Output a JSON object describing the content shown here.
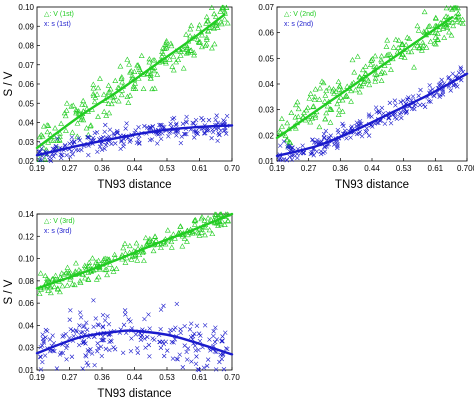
{
  "chart_data": [
    {
      "type": "scatter",
      "xlabel": "TN93 distance",
      "ylabel": "S / V",
      "xticks": [
        "0.19",
        "0.27",
        "0.36",
        "0.44",
        "0.53",
        "0.61",
        "0.70"
      ],
      "yticks": [
        "0.02",
        "0.03",
        "0.04",
        "0.05",
        "0.06",
        "0.07",
        "0.08",
        "0.09",
        "0.10"
      ],
      "xlim": [
        0.19,
        0.7
      ],
      "ylim": [
        0.02,
        0.1
      ],
      "series": [
        {
          "name": "V (1st)",
          "legend_symbol": "△:",
          "marker": "triangle",
          "color": "#22cc22",
          "fit": [
            [
              0.19,
              0.0268
            ],
            [
              0.3,
              0.043
            ],
            [
              0.4,
              0.056
            ],
            [
              0.5,
              0.07
            ],
            [
              0.6,
              0.084
            ],
            [
              0.68,
              0.096
            ]
          ],
          "spread": 0.0055
        },
        {
          "name": "s (1st)",
          "legend_symbol": "x:",
          "marker": "x",
          "color": "#1a1acc",
          "fit": [
            [
              0.19,
              0.023
            ],
            [
              0.3,
              0.028
            ],
            [
              0.4,
              0.032
            ],
            [
              0.5,
              0.0355
            ],
            [
              0.6,
              0.0375
            ],
            [
              0.7,
              0.0385
            ]
          ],
          "spread": 0.003
        }
      ]
    },
    {
      "type": "scatter",
      "xlabel": "TN93 distance",
      "ylabel": "",
      "xticks": [
        "0.19",
        "0.27",
        "0.36",
        "0.44",
        "0.53",
        "0.61",
        "0.700"
      ],
      "yticks": [
        "0.01",
        "0.02",
        "0.03",
        "0.04",
        "0.05",
        "0.06",
        "0.07"
      ],
      "xlim": [
        0.19,
        0.7
      ],
      "ylim": [
        0.01,
        0.07
      ],
      "series": [
        {
          "name": "V (2nd)",
          "legend_symbol": "△:",
          "marker": "triangle",
          "color": "#22cc22",
          "fit": [
            [
              0.19,
              0.019
            ],
            [
              0.3,
              0.03
            ],
            [
              0.4,
              0.04
            ],
            [
              0.5,
              0.05
            ],
            [
              0.6,
              0.06
            ],
            [
              0.66,
              0.066
            ]
          ],
          "spread": 0.004
        },
        {
          "name": "s (2nd)",
          "legend_symbol": "x:",
          "marker": "x",
          "color": "#1a1acc",
          "fit": [
            [
              0.19,
              0.012
            ],
            [
              0.3,
              0.016
            ],
            [
              0.4,
              0.022
            ],
            [
              0.5,
              0.029
            ],
            [
              0.6,
              0.036
            ],
            [
              0.7,
              0.044
            ]
          ],
          "spread": 0.002
        }
      ]
    },
    {
      "type": "scatter",
      "xlabel": "TN93 distance",
      "ylabel": "S / V",
      "xticks": [
        "0.19",
        "0.27",
        "0.36",
        "0.44",
        "0.53",
        "0.61",
        "0.70"
      ],
      "yticks": [
        "0.01",
        "0.03",
        "0.04",
        "0.06",
        "0.08",
        "0.10",
        "0.12",
        "0.14"
      ],
      "xlim": [
        0.19,
        0.7
      ],
      "ylim": [
        0.01,
        0.14
      ],
      "series": [
        {
          "name": "V (3rd)",
          "legend_symbol": "△:",
          "marker": "triangle",
          "color": "#22cc22",
          "fit": [
            [
              0.19,
              0.078
            ],
            [
              0.3,
              0.09
            ],
            [
              0.4,
              0.102
            ],
            [
              0.5,
              0.115
            ],
            [
              0.6,
              0.127
            ],
            [
              0.7,
              0.14
            ]
          ],
          "spread": 0.005
        },
        {
          "name": "s (3rd)",
          "legend_symbol": "x:",
          "marker": "x",
          "color": "#1a1acc",
          "fit": [
            [
              0.19,
              0.024
            ],
            [
              0.3,
              0.037
            ],
            [
              0.4,
              0.042
            ],
            [
              0.45,
              0.0425
            ],
            [
              0.55,
              0.038
            ],
            [
              0.7,
              0.023
            ]
          ],
          "spread": 0.01
        }
      ]
    }
  ]
}
